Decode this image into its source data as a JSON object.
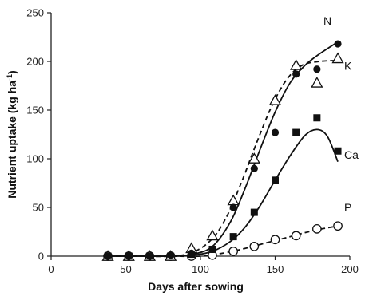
{
  "chart_data": {
    "type": "scatter",
    "title": "",
    "xlabel": "Days after sowing",
    "ylabel": "Nutrient uptake (kg ha",
    "ylabel_superscript": "-1",
    "ylabel_suffix": ")",
    "xlim": [
      0,
      200
    ],
    "ylim": [
      0,
      250
    ],
    "x_ticks": [
      "0",
      "50",
      "100",
      "150",
      "200"
    ],
    "y_ticks": [
      "0",
      "50",
      "100",
      "150",
      "200",
      "250"
    ],
    "grid": false,
    "legend": "none (series labelled inline)",
    "series": [
      {
        "name": "N",
        "marker": "filled-circle",
        "fit_line": "solid",
        "x": [
          38,
          52,
          66,
          80,
          94,
          108,
          122,
          136,
          150,
          164,
          178,
          192
        ],
        "y": [
          0,
          0,
          0,
          1,
          3,
          7,
          50,
          90,
          127,
          187,
          192,
          218
        ],
        "fit": {
          "x": [
            38,
            60,
            80,
            95,
            108,
            120,
            130,
            140,
            150,
            160,
            170,
            180,
            192
          ],
          "y": [
            0,
            0,
            0,
            2,
            10,
            35,
            70,
            110,
            148,
            178,
            196,
            208,
            220
          ]
        }
      },
      {
        "name": "K",
        "marker": "open-triangle",
        "fit_line": "dashed",
        "x": [
          38,
          52,
          66,
          80,
          94,
          108,
          122,
          136,
          150,
          164,
          178,
          192
        ],
        "y": [
          0,
          0,
          0,
          0,
          8,
          21,
          57,
          100,
          160,
          196,
          178,
          203
        ],
        "fit": {
          "x": [
            38,
            60,
            80,
            95,
            108,
            118,
            128,
            138,
            148,
            158,
            168,
            180,
            192
          ],
          "y": [
            0,
            0,
            0,
            4,
            18,
            42,
            78,
            118,
            155,
            182,
            196,
            200,
            201
          ]
        }
      },
      {
        "name": "Ca",
        "marker": "filled-square",
        "fit_line": "solid",
        "x": [
          38,
          52,
          66,
          80,
          94,
          108,
          122,
          136,
          150,
          164,
          178,
          192
        ],
        "y": [
          0,
          0,
          0,
          0,
          2,
          7,
          20,
          45,
          78,
          127,
          142,
          108
        ],
        "fit": {
          "x": [
            38,
            60,
            80,
            95,
            108,
            120,
            130,
            140,
            150,
            160,
            170,
            178,
            185,
            192
          ],
          "y": [
            0,
            0,
            0,
            1,
            5,
            15,
            30,
            52,
            78,
            103,
            124,
            130,
            123,
            97
          ]
        }
      },
      {
        "name": "P",
        "marker": "open-circle",
        "fit_line": "dashed",
        "x": [
          38,
          52,
          66,
          80,
          94,
          108,
          122,
          136,
          150,
          164,
          178,
          192
        ],
        "y": [
          0,
          0,
          0,
          0,
          0,
          1,
          5,
          10,
          17,
          21,
          28,
          31
        ],
        "fit": {
          "x": [
            38,
            60,
            80,
            100,
            115,
            130,
            145,
            160,
            175,
            192
          ],
          "y": [
            0,
            0,
            0,
            0,
            3,
            8,
            14,
            20,
            26,
            31
          ]
        }
      }
    ]
  }
}
